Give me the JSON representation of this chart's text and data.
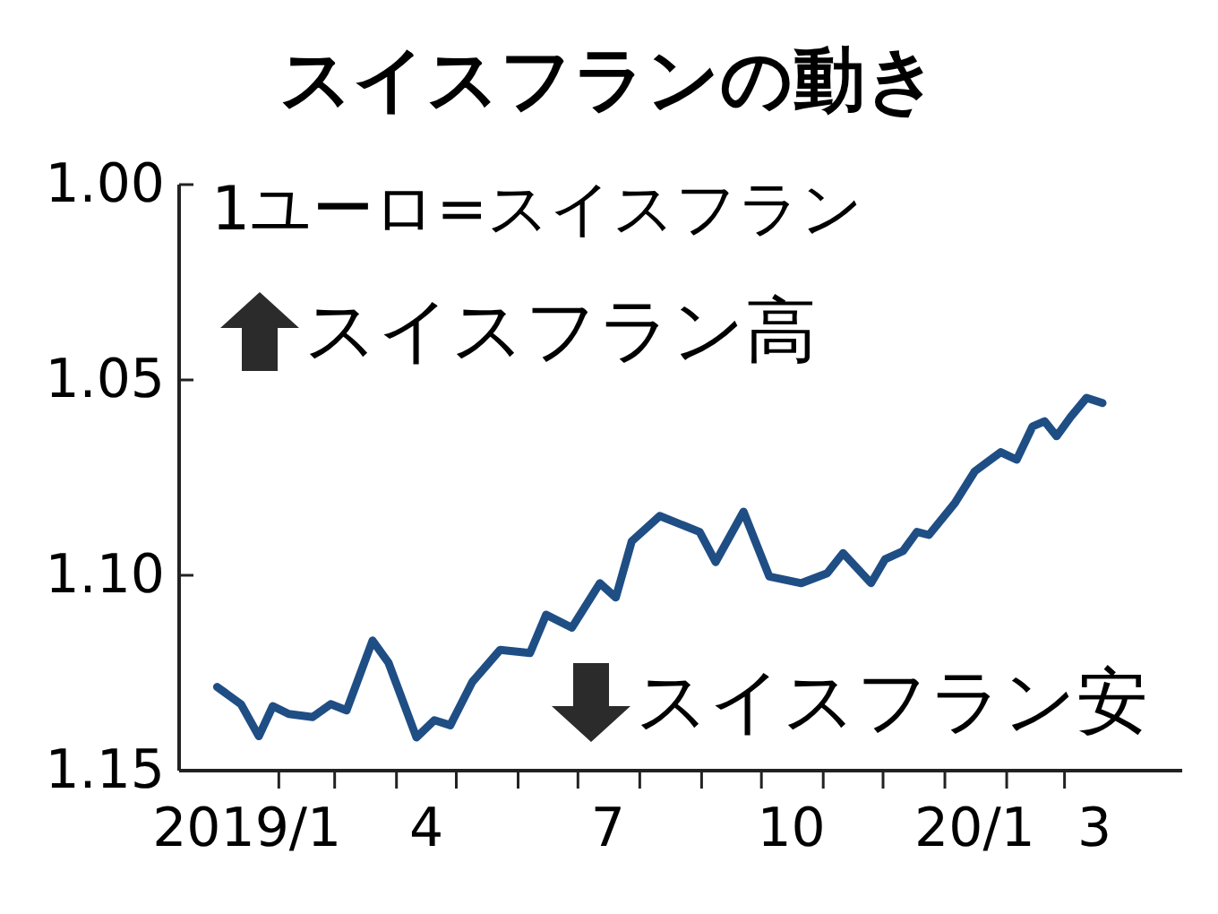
{
  "chart_data": {
    "type": "line",
    "title": "スイスフランの動き",
    "annotations": [
      "1ユーロ=スイスフラン",
      "スイスフラン高",
      "スイスフラン安"
    ],
    "x": [
      "2019-01-01",
      "2019-01-13",
      "2019-01-22",
      "2019-01-29",
      "2019-02-06",
      "2019-02-18",
      "2019-02-27",
      "2019-03-07",
      "2019-03-20",
      "2019-03-28",
      "2019-04-11",
      "2019-04-20",
      "2019-04-28",
      "2019-05-09",
      "2019-05-23",
      "2019-06-07",
      "2019-06-15",
      "2019-06-28",
      "2019-07-12",
      "2019-07-20",
      "2019-07-28",
      "2019-08-11",
      "2019-08-31",
      "2019-09-08",
      "2019-09-22",
      "2019-10-05",
      "2019-10-21",
      "2019-11-03",
      "2019-11-11",
      "2019-11-25",
      "2019-12-02",
      "2019-12-11",
      "2019-12-18",
      "2019-12-24",
      "2020-01-06",
      "2020-01-16",
      "2020-01-29",
      "2020-02-06",
      "2020-02-14",
      "2020-02-20",
      "2020-02-26",
      "2020-03-04",
      "2020-03-12",
      "2020-03-20"
    ],
    "series": [
      {
        "color": "#1f4e85",
        "values": [
          1.1286,
          1.133,
          1.1412,
          1.1335,
          1.1355,
          1.1363,
          1.133,
          1.1346,
          1.1167,
          1.1224,
          1.1415,
          1.1371,
          1.1384,
          1.1273,
          1.1191,
          1.1199,
          1.1101,
          1.1134,
          1.102,
          1.1057,
          1.0913,
          1.0848,
          1.0889,
          1.0966,
          1.0837,
          1.1003,
          1.102,
          1.0995,
          1.0943,
          1.102,
          1.0959,
          1.0938,
          1.0889,
          1.0897,
          1.0815,
          1.0734,
          1.0685,
          1.0704,
          1.0619,
          1.0606,
          1.0644,
          1.0595,
          1.0546,
          1.0559
        ]
      }
    ],
    "xlim": [
      "2018-12-13",
      "2020-04-29"
    ],
    "xticks": [
      {
        "value": "2019-01-16",
        "label": "2019/1"
      },
      {
        "value": "2019-02-01",
        "label": null
      },
      {
        "value": "2019-03-01",
        "label": null
      },
      {
        "value": "2019-04-01",
        "label": null
      },
      {
        "value": "2019-04-16",
        "label": "4"
      },
      {
        "value": "2019-05-01",
        "label": null
      },
      {
        "value": "2019-06-01",
        "label": null
      },
      {
        "value": "2019-07-01",
        "label": null
      },
      {
        "value": "2019-07-16",
        "label": "7"
      },
      {
        "value": "2019-08-01",
        "label": null
      },
      {
        "value": "2019-09-01",
        "label": null
      },
      {
        "value": "2019-10-01",
        "label": null
      },
      {
        "value": "2019-10-16",
        "label": "10"
      },
      {
        "value": "2019-11-01",
        "label": null
      },
      {
        "value": "2019-12-01",
        "label": null
      },
      {
        "value": "2020-01-01",
        "label": null
      },
      {
        "value": "2020-01-16",
        "label": "20/1"
      },
      {
        "value": "2020-02-01",
        "label": null
      },
      {
        "value": "2020-03-01",
        "label": null
      },
      {
        "value": "2020-03-16",
        "label": "3"
      }
    ],
    "ylim": [
      1.15,
      1.0
    ],
    "yticks": [
      {
        "value": 1.0,
        "label": "1.00"
      },
      {
        "value": 1.05,
        "label": "1.05"
      },
      {
        "value": 1.1,
        "label": "1.10"
      },
      {
        "value": 1.15,
        "label": "1.15"
      }
    ],
    "grid": false,
    "marker": "none",
    "line_style": "solid"
  }
}
